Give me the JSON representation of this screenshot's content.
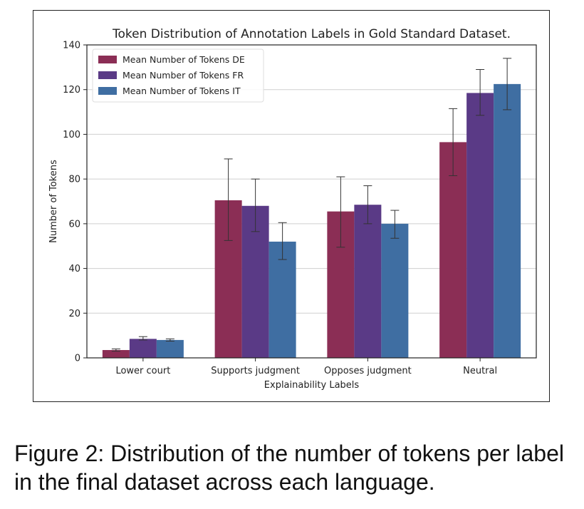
{
  "chart_data": {
    "type": "bar",
    "title": "Token Distribution of Annotation Labels in Gold Standard Dataset.",
    "xlabel": "Explainability Labels",
    "ylabel": "Number of Tokens",
    "categories": [
      "Lower court",
      "Supports judgment",
      "Opposes judgment",
      "Neutral"
    ],
    "ylim": [
      0,
      140
    ],
    "yticks": [
      0,
      20,
      40,
      60,
      80,
      100,
      120,
      140
    ],
    "grid": "horizontal",
    "legend_position": "top-left",
    "series": [
      {
        "name": "Mean Number of Tokens DE",
        "color": "#8b2e55",
        "values": [
          3.5,
          70.5,
          65.5,
          96.5
        ],
        "error_low": [
          3.0,
          52.5,
          49.5,
          81.5
        ],
        "error_high": [
          4.0,
          89.0,
          81.0,
          111.5
        ]
      },
      {
        "name": "Mean Number of Tokens FR",
        "color": "#5a3a86",
        "values": [
          8.5,
          68.0,
          68.5,
          118.5
        ],
        "error_low": [
          8.0,
          56.5,
          60.0,
          108.5
        ],
        "error_high": [
          9.5,
          80.0,
          77.0,
          129.0
        ]
      },
      {
        "name": "Mean Number of Tokens IT",
        "color": "#3f6ea2",
        "values": [
          8.0,
          52.0,
          60.0,
          122.5
        ],
        "error_low": [
          7.5,
          44.0,
          53.5,
          111.0
        ],
        "error_high": [
          8.5,
          60.5,
          66.0,
          134.0
        ]
      }
    ]
  },
  "caption": "Figure 2: Distribution of the number of tokens per label in the final dataset across each language."
}
